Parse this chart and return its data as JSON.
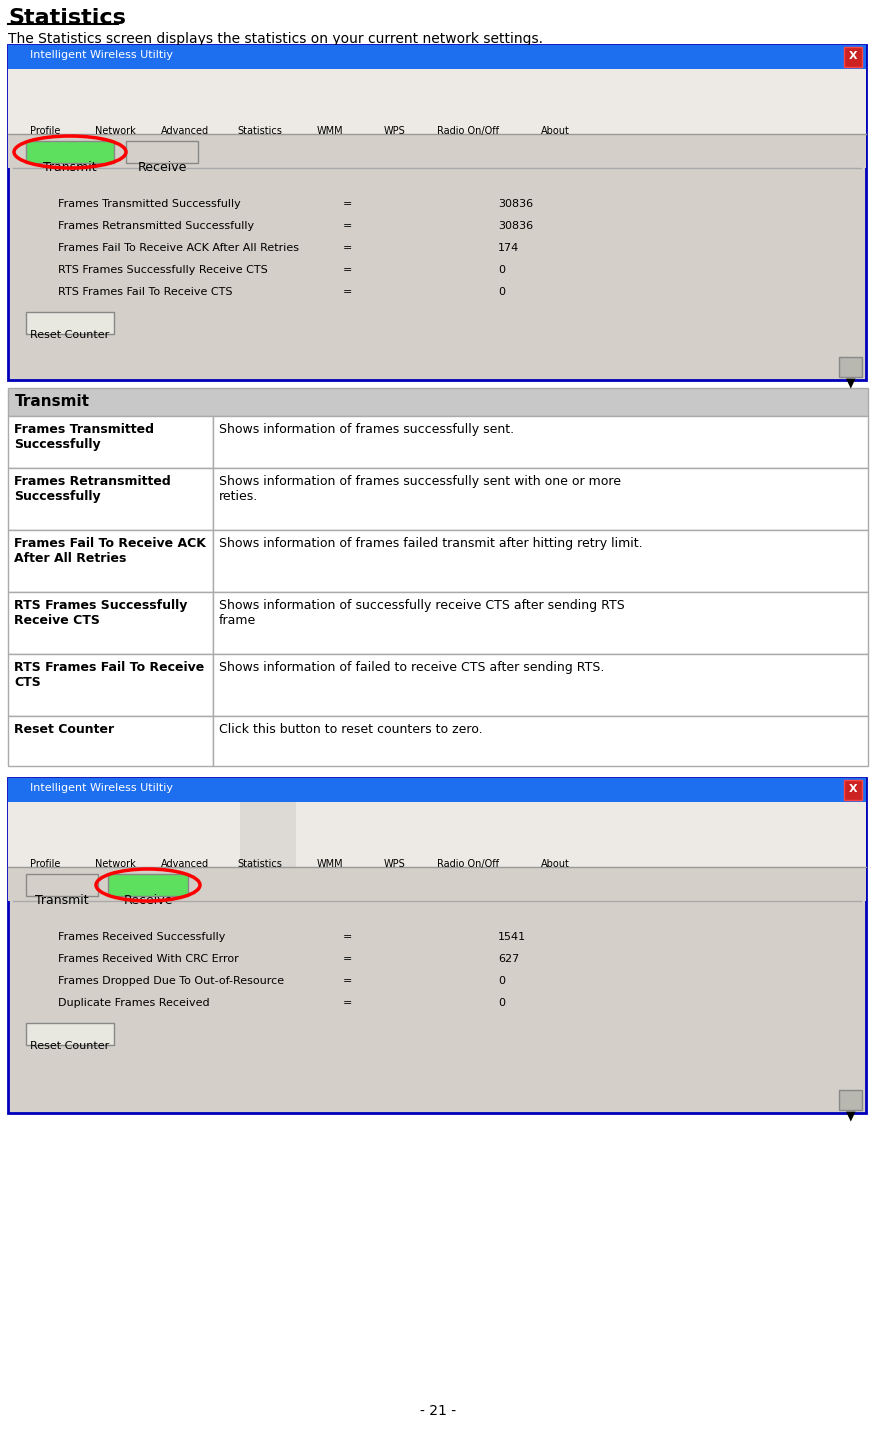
{
  "title": "Statistics",
  "subtitle": "The Statistics screen displays the statistics on your current network settings.",
  "window_title": "Intelligent Wireless Utiltiy",
  "tab1_label": "Transmit",
  "tab2_label": "Receive",
  "nav_items": [
    "Profile",
    "Network",
    "Advanced",
    "Statistics",
    "WMM",
    "WPS",
    "Radio On/Off",
    "About"
  ],
  "nav_x_positions": [
    45,
    115,
    185,
    260,
    330,
    395,
    468,
    555
  ],
  "transmit_rows": [
    [
      "Frames Transmitted Successfully",
      "=",
      "30836"
    ],
    [
      "Frames Retransmitted Successfully",
      "=",
      "30836"
    ],
    [
      "Frames Fail To Receive ACK After All Retries",
      "=",
      "174"
    ],
    [
      "RTS Frames Successfully Receive CTS",
      "=",
      "0"
    ],
    [
      "RTS Frames Fail To Receive CTS",
      "=",
      "0"
    ]
  ],
  "receive_rows": [
    [
      "Frames Received Successfully",
      "=",
      "1541"
    ],
    [
      "Frames Received With CRC Error",
      "=",
      "627"
    ],
    [
      "Frames Dropped Due To Out-of-Resource",
      "=",
      "0"
    ],
    [
      "Duplicate Frames Received",
      "=",
      "0"
    ]
  ],
  "reset_button_label": "Reset Counter",
  "table_header": "Transmit",
  "table_rows": [
    [
      "Frames Transmitted\nSuccessfully",
      "Shows information of frames successfully sent."
    ],
    [
      "Frames Retransmitted\nSuccessfully",
      "Shows information of frames successfully sent with one or more\nreties."
    ],
    [
      "Frames Fail To Receive ACK\nAfter All Retries",
      "Shows information of frames failed transmit after hitting retry limit."
    ],
    [
      "RTS Frames Successfully\nReceive CTS",
      "Shows information of successfully receive CTS after sending RTS\nframe"
    ],
    [
      "RTS Frames Fail To Receive\nCTS",
      "Shows information of failed to receive CTS after sending RTS."
    ],
    [
      "Reset Counter",
      "Click this button to reset counters to zero."
    ]
  ],
  "table_row_heights": [
    52,
    62,
    62,
    62,
    62,
    50
  ],
  "bg_color": "#ffffff",
  "window_bg": "#d4cfc8",
  "window_border": "#0000bb",
  "titlebar_color": "#1e6ef0",
  "tab_active_color": "#5de05d",
  "tab_inactive_color": "#d4cfc8",
  "table_header_color": "#c8c8c8",
  "table_border_color": "#aaaaaa",
  "page_number": "- 21 -"
}
